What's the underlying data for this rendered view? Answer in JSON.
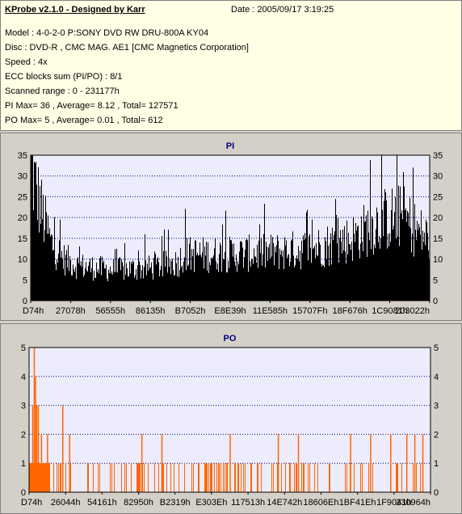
{
  "info": {
    "title": "KProbe v2.1.0 - Designed by Karr",
    "date": "Date : 2005/09/17 3:19:25",
    "lines": [
      "Model : 4-0-2-0 P:SONY    DVD RW DRU-800A  KY04",
      "Disc : DVD-R , CMC MAG. AE1 [CMC Magnetics Corporation]",
      "Speed : 4x",
      "ECC blocks sum (PI/PO) : 8/1",
      "Scanned range : 0 - 231177h",
      "PI Max= 36 , Average= 8.12 , Total= 127571",
      "PO Max= 5 , Average= 0.01 , Total= 612"
    ]
  },
  "colors": {
    "pi_bar": "#000000",
    "po_bar": "#ff6600",
    "plot_bg": "#ececfc",
    "grid": "#000080"
  },
  "chart_data": [
    {
      "type": "bar",
      "title": "PI",
      "ylim": [
        0,
        35
      ],
      "yticks": [
        0,
        5,
        10,
        15,
        20,
        25,
        30,
        35
      ],
      "grid": "horizontal dashed",
      "xticklabels": [
        "D74h",
        "27078h",
        "56555h",
        "86135h",
        "B7052h",
        "E8E39h",
        "11E585h",
        "15707Fh",
        "18F676h",
        "1C9081h",
        "203022h"
      ],
      "profile": [
        [
          0,
          35
        ],
        [
          0.01,
          30
        ],
        [
          0.03,
          22
        ],
        [
          0.05,
          15
        ],
        [
          0.08,
          11
        ],
        [
          0.12,
          9
        ],
        [
          0.2,
          8
        ],
        [
          0.3,
          8.5
        ],
        [
          0.37,
          10
        ],
        [
          0.38,
          12
        ],
        [
          0.5,
          12
        ],
        [
          0.6,
          12.5
        ],
        [
          0.7,
          13.5
        ],
        [
          0.8,
          16
        ],
        [
          0.88,
          21
        ],
        [
          0.93,
          22
        ],
        [
          0.97,
          18
        ],
        [
          1,
          16
        ]
      ]
    },
    {
      "type": "bar",
      "title": "PO",
      "ylim": [
        0,
        5
      ],
      "yticks": [
        0,
        1,
        2,
        3,
        4,
        5
      ],
      "grid": "horizontal dashed",
      "xticklabels": [
        "D74h",
        "26044h",
        "54161h",
        "82950h",
        "B2319h",
        "E303Eh",
        "117513h",
        "14E742h",
        "18606Eh",
        "1BF41Eh",
        "1F9041h",
        "230964h"
      ],
      "spikes": [
        [
          0.012,
          5
        ],
        [
          0.015,
          4
        ],
        [
          0.008,
          3
        ],
        [
          0.018,
          3
        ],
        [
          0.022,
          3
        ],
        [
          0.03,
          2
        ],
        [
          0.045,
          2
        ],
        [
          0.083,
          3
        ],
        [
          0.1,
          2
        ],
        [
          0.28,
          2
        ],
        [
          0.33,
          2
        ],
        [
          0.5,
          2
        ],
        [
          0.62,
          2
        ],
        [
          0.67,
          2
        ],
        [
          0.8,
          2
        ],
        [
          0.85,
          2
        ],
        [
          0.9,
          2
        ],
        [
          0.94,
          2
        ],
        [
          0.96,
          2
        ],
        [
          0.98,
          2
        ]
      ]
    }
  ]
}
